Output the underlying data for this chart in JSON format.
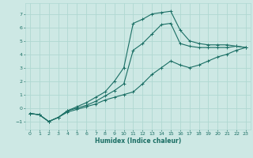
{
  "title": "",
  "xlabel": "Humidex (Indice chaleur)",
  "ylabel": "",
  "bg_color": "#cde8e4",
  "line_color": "#1a6e64",
  "grid_color": "#b0d8d2",
  "xlim": [
    -0.5,
    23.5
  ],
  "ylim": [
    -1.6,
    7.8
  ],
  "yticks": [
    -1,
    0,
    1,
    2,
    3,
    4,
    5,
    6,
    7
  ],
  "xticks": [
    0,
    1,
    2,
    3,
    4,
    5,
    6,
    7,
    8,
    9,
    10,
    11,
    12,
    13,
    14,
    15,
    16,
    17,
    18,
    19,
    20,
    21,
    22,
    23
  ],
  "series": [
    {
      "x": [
        0,
        1,
        2,
        3,
        4,
        5,
        6,
        7,
        8,
        9,
        10,
        11,
        12,
        13,
        14,
        15,
        16,
        17,
        18,
        19,
        20,
        21,
        22,
        23
      ],
      "y": [
        -0.4,
        -0.5,
        -1.0,
        -0.7,
        -0.3,
        -0.1,
        0.1,
        0.3,
        0.6,
        0.8,
        1.0,
        1.2,
        1.8,
        2.5,
        3.0,
        3.5,
        3.2,
        3.0,
        3.2,
        3.5,
        3.8,
        4.0,
        4.3,
        4.5
      ]
    },
    {
      "x": [
        0,
        1,
        2,
        3,
        4,
        5,
        6,
        7,
        8,
        9,
        10,
        11,
        12,
        13,
        14,
        15,
        16,
        17,
        18,
        19,
        20,
        21,
        22,
        23
      ],
      "y": [
        -0.4,
        -0.5,
        -1.0,
        -0.7,
        -0.2,
        0.1,
        0.4,
        0.8,
        1.2,
        2.0,
        3.0,
        6.3,
        6.6,
        7.0,
        7.1,
        7.2,
        5.8,
        5.0,
        4.8,
        4.7,
        4.7,
        4.7,
        4.6,
        4.5
      ]
    },
    {
      "x": [
        0,
        1,
        2,
        3,
        4,
        5,
        6,
        7,
        8,
        9,
        10,
        11,
        12,
        13,
        14,
        15,
        16,
        17,
        18,
        19,
        20,
        21,
        22,
        23
      ],
      "y": [
        -0.4,
        -0.5,
        -1.0,
        -0.7,
        -0.2,
        0.0,
        0.2,
        0.5,
        0.9,
        1.3,
        1.8,
        4.3,
        4.8,
        5.5,
        6.2,
        6.3,
        4.8,
        4.6,
        4.5,
        4.5,
        4.5,
        4.5,
        4.6,
        4.5
      ]
    }
  ]
}
